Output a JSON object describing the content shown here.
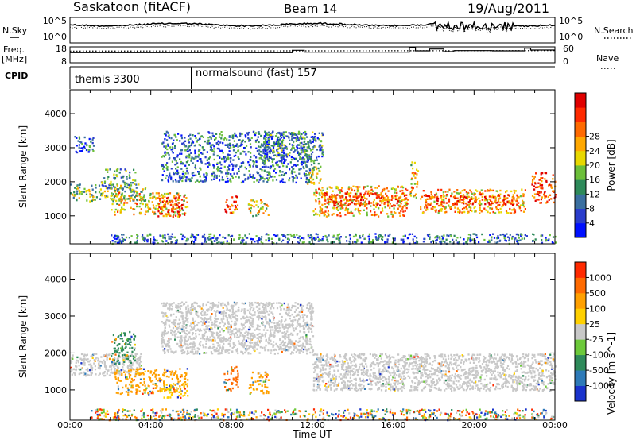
{
  "header": {
    "station": "Saskatoon (fitACF)",
    "beam": "Beam 14",
    "date": "19/Aug/2011"
  },
  "left_labels": {
    "nsky": "N.Sky",
    "freq_line1": "Freq.",
    "freq_line2": "[MHz]",
    "cpid": "CPID"
  },
  "right_labels": {
    "nsearch": "N.Search",
    "nave": "Nave"
  },
  "cpid_segments": [
    {
      "label": "themis 3300",
      "start_hour": 0
    },
    {
      "label": "normalsound (fast) 157",
      "start_hour": 6
    }
  ],
  "chart_data": [
    {
      "type": "line",
      "panel": "noise",
      "yticks_left": [
        "10^5",
        "10^0"
      ],
      "yticks_right": [
        "10^5",
        "10^0"
      ],
      "legend_left": "N.Sky",
      "legend_right": "N.Search"
    },
    {
      "type": "line",
      "panel": "frequency",
      "yticks_left": [
        "18",
        "8"
      ],
      "yticks_right": [
        "60",
        "0"
      ],
      "series": [
        {
          "name": "Nave",
          "style": "solid",
          "points": [
            [
              0,
              38
            ],
            [
              11,
              38
            ],
            [
              11,
              47
            ],
            [
              11.6,
              47
            ],
            [
              11.6,
              40
            ],
            [
              16.8,
              40
            ],
            [
              16.8,
              58
            ],
            [
              17.1,
              58
            ],
            [
              17.1,
              45
            ],
            [
              17.8,
              45
            ],
            [
              17.8,
              52
            ],
            [
              18.5,
              52
            ],
            [
              18.5,
              42
            ],
            [
              19,
              42
            ],
            [
              19,
              46
            ],
            [
              20.9,
              46
            ],
            [
              20.9,
              45
            ],
            [
              22.5,
              45
            ],
            [
              22.5,
              55
            ],
            [
              22.8,
              55
            ],
            [
              22.8,
              48
            ],
            [
              24,
              48
            ]
          ]
        },
        {
          "name": "Freq.",
          "style": "dotted",
          "points": [
            [
              0,
              44
            ],
            [
              24,
              46
            ]
          ]
        }
      ]
    },
    {
      "type": "heatmap",
      "panel": "power",
      "xlabel": "",
      "ylabel": "Slant Range [km]",
      "xlim": [
        0,
        24
      ],
      "ylim": [
        180,
        4700
      ],
      "yticks": [
        1000,
        2000,
        3000,
        4000
      ],
      "colorbar": {
        "label": "Power [dB]",
        "ticks": [
          4,
          8,
          12,
          16,
          20,
          24,
          28
        ],
        "colors": [
          "#0010ff",
          "#2a3dcc",
          "#3a6fa0",
          "#2e8a5a",
          "#6cbf3a",
          "#e8d800",
          "#ffa800",
          "#ff6a00",
          "#ff2a00",
          "#e00000"
        ]
      },
      "regions": [
        {
          "x": [
            0.2,
            1.2
          ],
          "y": [
            2850,
            3350
          ],
          "level": 0.25
        },
        {
          "x": [
            0.0,
            3.8
          ],
          "y": [
            1450,
            1950
          ],
          "level": 0.45
        },
        {
          "x": [
            1.5,
            3.2
          ],
          "y": [
            1800,
            2400
          ],
          "level": 0.35
        },
        {
          "x": [
            2.0,
            5.8
          ],
          "y": [
            1050,
            1700
          ],
          "level": 0.6
        },
        {
          "x": [
            4.3,
            5.7
          ],
          "y": [
            1000,
            1600
          ],
          "level": 0.8
        },
        {
          "x": [
            4.5,
            12.0
          ],
          "y": [
            2000,
            3500
          ],
          "level": 0.25
        },
        {
          "x": [
            7.6,
            8.3
          ],
          "y": [
            1100,
            1600
          ],
          "level": 0.8
        },
        {
          "x": [
            8.8,
            9.8
          ],
          "y": [
            1000,
            1500
          ],
          "level": 0.55
        },
        {
          "x": [
            9.5,
            12.5
          ],
          "y": [
            2600,
            3500
          ],
          "level": 0.3
        },
        {
          "x": [
            11.6,
            12.4
          ],
          "y": [
            1950,
            2600
          ],
          "level": 0.45
        },
        {
          "x": [
            12.0,
            16.7
          ],
          "y": [
            1000,
            1900
          ],
          "level": 0.65
        },
        {
          "x": [
            12.5,
            16.7
          ],
          "y": [
            1300,
            1700
          ],
          "level": 0.85
        },
        {
          "x": [
            16.8,
            17.2
          ],
          "y": [
            1500,
            2600
          ],
          "level": 0.6
        },
        {
          "x": [
            17.3,
            22.5
          ],
          "y": [
            1100,
            1800
          ],
          "level": 0.65
        },
        {
          "x": [
            17.5,
            22.2
          ],
          "y": [
            1350,
            1650
          ],
          "level": 0.85
        },
        {
          "x": [
            22.8,
            24.0
          ],
          "y": [
            1400,
            2300
          ],
          "level": 0.85
        },
        {
          "x": [
            2.0,
            24.0
          ],
          "y": [
            200,
            500
          ],
          "level": 0.25
        }
      ]
    },
    {
      "type": "heatmap",
      "panel": "velocity",
      "xlabel": "Time UT",
      "ylabel": "Slant Range [km]",
      "xlim": [
        0,
        24
      ],
      "ylim": [
        180,
        4700
      ],
      "yticks": [
        1000,
        2000,
        3000,
        4000
      ],
      "xticks": [
        "00:00",
        "04:00",
        "08:00",
        "12:00",
        "16:00",
        "20:00",
        "00:00"
      ],
      "colorbar": {
        "label": "Velocity [m s^-1]",
        "ticks": [
          "1000",
          "500",
          "100",
          "25",
          "-25",
          "-100",
          "-500",
          "-1000"
        ],
        "colors": [
          "#1a33cc",
          "#2e7ab8",
          "#2e8a5a",
          "#6cc93a",
          "#c8c8c8",
          "#ffd000",
          "#ffa000",
          "#ff6a00",
          "#ff2a00"
        ]
      },
      "regions": [
        {
          "x": [
            0.0,
            3.5
          ],
          "y": [
            1400,
            2000
          ],
          "ground": true
        },
        {
          "x": [
            4.5,
            12.0
          ],
          "y": [
            2000,
            3400
          ],
          "ground": true
        },
        {
          "x": [
            12.0,
            24.0
          ],
          "y": [
            1000,
            2000
          ],
          "ground": true
        },
        {
          "x": [
            2.0,
            3.2
          ],
          "y": [
            1700,
            2600
          ],
          "color": "#2e8a5a"
        },
        {
          "x": [
            2.2,
            5.8
          ],
          "y": [
            900,
            1600
          ],
          "color": "#ffa000"
        },
        {
          "x": [
            4.5,
            5.8
          ],
          "y": [
            800,
            1200
          ],
          "color": "#ffd000"
        },
        {
          "x": [
            7.6,
            8.3
          ],
          "y": [
            1000,
            1700
          ],
          "color": "#ff6a00"
        },
        {
          "x": [
            8.8,
            9.8
          ],
          "y": [
            900,
            1500
          ],
          "color": "#ffa000"
        },
        {
          "x": [
            1.0,
            24.0
          ],
          "y": [
            200,
            500
          ],
          "mixed": true
        }
      ]
    }
  ]
}
